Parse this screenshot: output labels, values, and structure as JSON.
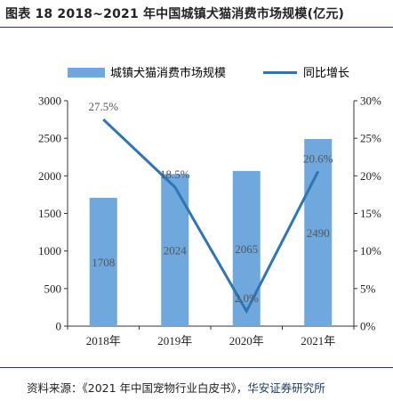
{
  "title": "图表 18 2018~2021 年中国城镇犬猫消费市场规模(亿元)",
  "source": {
    "lead": "资料来源：《2021 年中国宠物行业白皮书》，",
    "tail": "华安证券研究所"
  },
  "chart_data": {
    "type": "bar+line",
    "categories": [
      "2018年",
      "2019年",
      "2020年",
      "2021年"
    ],
    "series": [
      {
        "name": "城镇犬猫消费市场规模",
        "type": "bar",
        "axis": "left",
        "values": [
          1708,
          2024,
          2065,
          2490
        ],
        "labels": [
          "1708",
          "2024",
          "2065",
          "2490"
        ],
        "color": "#6fa8dc"
      },
      {
        "name": "同比增长",
        "type": "line",
        "axis": "right",
        "values": [
          27.5,
          18.5,
          2.0,
          20.6
        ],
        "labels": [
          "27.5%",
          "18.5%",
          "2.0%",
          "20.6%"
        ],
        "color": "#2e75b6"
      }
    ],
    "left_axis": {
      "min": 0,
      "max": 3000,
      "step": 500,
      "ticks": [
        "0",
        "500",
        "1000",
        "1500",
        "2000",
        "2500",
        "3000"
      ]
    },
    "right_axis": {
      "min": 0,
      "max": 30,
      "step": 5,
      "ticks": [
        "0%",
        "5%",
        "10%",
        "15%",
        "20%",
        "25%",
        "30%"
      ]
    },
    "legend": "top",
    "grid": false
  }
}
